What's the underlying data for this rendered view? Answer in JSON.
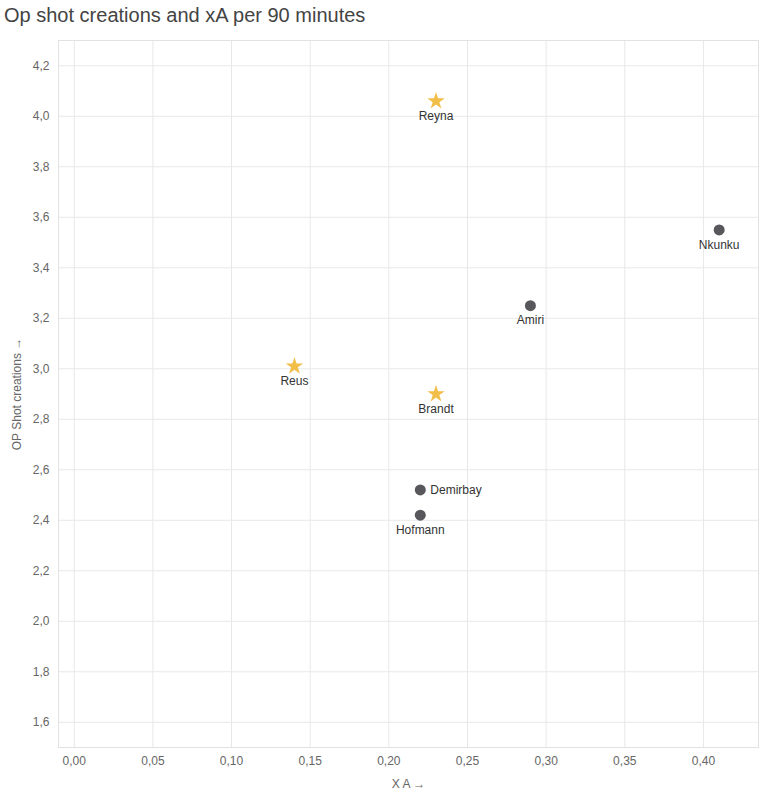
{
  "chart_data": {
    "type": "scatter",
    "title": "Op shot creations and xA per 90 minutes",
    "x_label": "X A",
    "y_label": "OP Shot creations",
    "series": [
      {
        "color": "#f2be4a",
        "marker": "star",
        "labels": [
          "Reyna",
          "Reus",
          "Brandt"
        ],
        "x": [
          0.23,
          0.14,
          0.23
        ],
        "y": [
          4.06,
          3.01,
          2.9
        ]
      },
      {
        "color": "#58585c",
        "marker": "circle",
        "labels": [
          "Nkunku",
          "Amiri",
          "Demirbay",
          "Hofmann"
        ],
        "x": [
          0.41,
          0.29,
          0.22,
          0.22
        ],
        "y": [
          3.55,
          3.25,
          2.52,
          2.42
        ]
      }
    ],
    "xlim": [
      -0.01,
      0.435
    ],
    "ylim": [
      1.5,
      4.3
    ],
    "xticks": [
      {
        "value": 0,
        "label": "0,00"
      },
      {
        "value": 0.05,
        "label": "0,05"
      },
      {
        "value": 0.1,
        "label": "0,10"
      },
      {
        "value": 0.15,
        "label": "0,15"
      },
      {
        "value": 0.2,
        "label": "0,20"
      },
      {
        "value": 0.25,
        "label": "0,25"
      },
      {
        "value": 0.3,
        "label": "0,30"
      },
      {
        "value": 0.35,
        "label": "0,35"
      },
      {
        "value": 0.4,
        "label": "0,40"
      }
    ],
    "yticks": [
      {
        "value": 1.6,
        "label": "1,6"
      },
      {
        "value": 1.8,
        "label": "1,8"
      },
      {
        "value": 2,
        "label": "2,0"
      },
      {
        "value": 2.2,
        "label": "2,2"
      },
      {
        "value": 2.4,
        "label": "2,4"
      },
      {
        "value": 2.6,
        "label": "2,6"
      },
      {
        "value": 2.8,
        "label": "2,8"
      },
      {
        "value": 3,
        "label": "3,0"
      },
      {
        "value": 3.2,
        "label": "3,2"
      },
      {
        "value": 3.4,
        "label": "3,4"
      },
      {
        "value": 3.6,
        "label": "3,6"
      },
      {
        "value": 3.8,
        "label": "3,8"
      },
      {
        "value": 4,
        "label": "4,0"
      },
      {
        "value": 4.2,
        "label": "4,2"
      }
    ],
    "grid": true
  }
}
